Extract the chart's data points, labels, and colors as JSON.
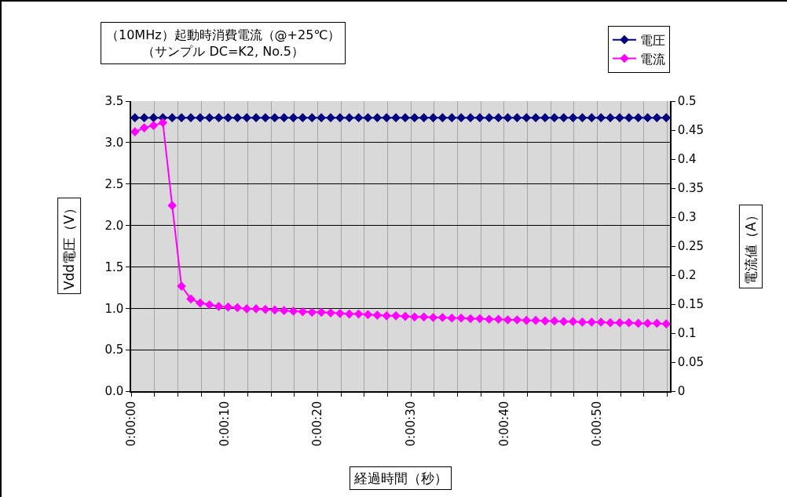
{
  "chart_data": {
    "type": "line",
    "title": "（10MHz）起動時消費電流（@+25℃）",
    "subtitle": "（サンプル DC=K2, No.5）",
    "xlabel": "経過時間（秒）",
    "ylabel": "Vdd電圧（V）",
    "y2label": "電流値（A）",
    "x": [
      0.4,
      1.4,
      2.4,
      3.4,
      4.4,
      5.4,
      6.4,
      7.4,
      8.4,
      9.4,
      10.4,
      11.4,
      12.4,
      13.4,
      14.4,
      15.4,
      16.4,
      17.4,
      18.4,
      19.4,
      20.4,
      21.4,
      22.4,
      23.4,
      24.4,
      25.4,
      26.4,
      27.4,
      28.4,
      29.4,
      30.4,
      31.4,
      32.4,
      33.4,
      34.4,
      35.4,
      36.4,
      37.4,
      38.4,
      39.4,
      40.4,
      41.4,
      42.4,
      43.4,
      44.4,
      45.4,
      46.4,
      47.4,
      48.4,
      49.4,
      50.4,
      51.4,
      52.4,
      53.4,
      54.4,
      55.4,
      56.4,
      57.4
    ],
    "series": [
      {
        "name": "電圧",
        "color": "#000080",
        "values": [
          3.3,
          3.3,
          3.3,
          3.3,
          3.3,
          3.3,
          3.3,
          3.3,
          3.3,
          3.3,
          3.3,
          3.3,
          3.3,
          3.3,
          3.3,
          3.3,
          3.3,
          3.3,
          3.3,
          3.3,
          3.3,
          3.3,
          3.3,
          3.3,
          3.3,
          3.3,
          3.3,
          3.3,
          3.3,
          3.3,
          3.3,
          3.3,
          3.3,
          3.3,
          3.3,
          3.3,
          3.3,
          3.3,
          3.3,
          3.3,
          3.3,
          3.3,
          3.3,
          3.3,
          3.3,
          3.3,
          3.3,
          3.3,
          3.3,
          3.3,
          3.3,
          3.3,
          3.3,
          3.3,
          3.3,
          3.3,
          3.3,
          3.3
        ]
      },
      {
        "name": "電流",
        "color": "#ff00ff",
        "axis": "y2",
        "values": [
          0.447,
          0.454,
          0.458,
          0.463,
          0.32,
          0.181,
          0.159,
          0.152,
          0.149,
          0.146,
          0.145,
          0.144,
          0.142,
          0.142,
          0.141,
          0.14,
          0.139,
          0.138,
          0.137,
          0.136,
          0.136,
          0.135,
          0.134,
          0.133,
          0.133,
          0.132,
          0.131,
          0.13,
          0.13,
          0.129,
          0.128,
          0.128,
          0.127,
          0.127,
          0.126,
          0.126,
          0.125,
          0.125,
          0.124,
          0.124,
          0.123,
          0.123,
          0.122,
          0.122,
          0.121,
          0.121,
          0.12,
          0.12,
          0.119,
          0.119,
          0.119,
          0.118,
          0.118,
          0.118,
          0.117,
          0.117,
          0.117,
          0.116
        ]
      }
    ],
    "xlim": [
      0,
      57.8
    ],
    "xticks": [
      {
        "value": 0,
        "label": "0:00:00"
      },
      {
        "value": 2.5,
        "label": null
      },
      {
        "value": 5,
        "label": null
      },
      {
        "value": 7.5,
        "label": null
      },
      {
        "value": 10,
        "label": "0:00:10"
      },
      {
        "value": 12.5,
        "label": null
      },
      {
        "value": 15,
        "label": null
      },
      {
        "value": 17.5,
        "label": null
      },
      {
        "value": 20,
        "label": "0:00:20"
      },
      {
        "value": 22.5,
        "label": null
      },
      {
        "value": 25,
        "label": null
      },
      {
        "value": 27.5,
        "label": null
      },
      {
        "value": 30,
        "label": "0:00:30"
      },
      {
        "value": 32.5,
        "label": null
      },
      {
        "value": 35,
        "label": null
      },
      {
        "value": 37.5,
        "label": null
      },
      {
        "value": 40,
        "label": "0:00:40"
      },
      {
        "value": 42.5,
        "label": null
      },
      {
        "value": 45,
        "label": null
      },
      {
        "value": 47.5,
        "label": null
      },
      {
        "value": 50,
        "label": "0:00:50"
      },
      {
        "value": 52.5,
        "label": null
      },
      {
        "value": 55,
        "label": null
      },
      {
        "value": 57.5,
        "label": null
      }
    ],
    "ylim": [
      0,
      3.5
    ],
    "yticks": [
      {
        "value": 0,
        "label": "0.0"
      },
      0.5,
      {
        "value": 1,
        "label": "1.0"
      },
      1.5,
      {
        "value": 2,
        "label": "2.0"
      },
      2.5,
      {
        "value": 3,
        "label": "3.0"
      },
      3.5
    ],
    "y2lim": [
      0,
      0.5
    ],
    "y2ticks": [
      0,
      0.05,
      0.1,
      0.15,
      0.2,
      0.25,
      0.3,
      0.35,
      0.4,
      0.45,
      0.5
    ],
    "grid": true,
    "legend": "top right",
    "marker": "diamond",
    "line_style": "solid"
  }
}
